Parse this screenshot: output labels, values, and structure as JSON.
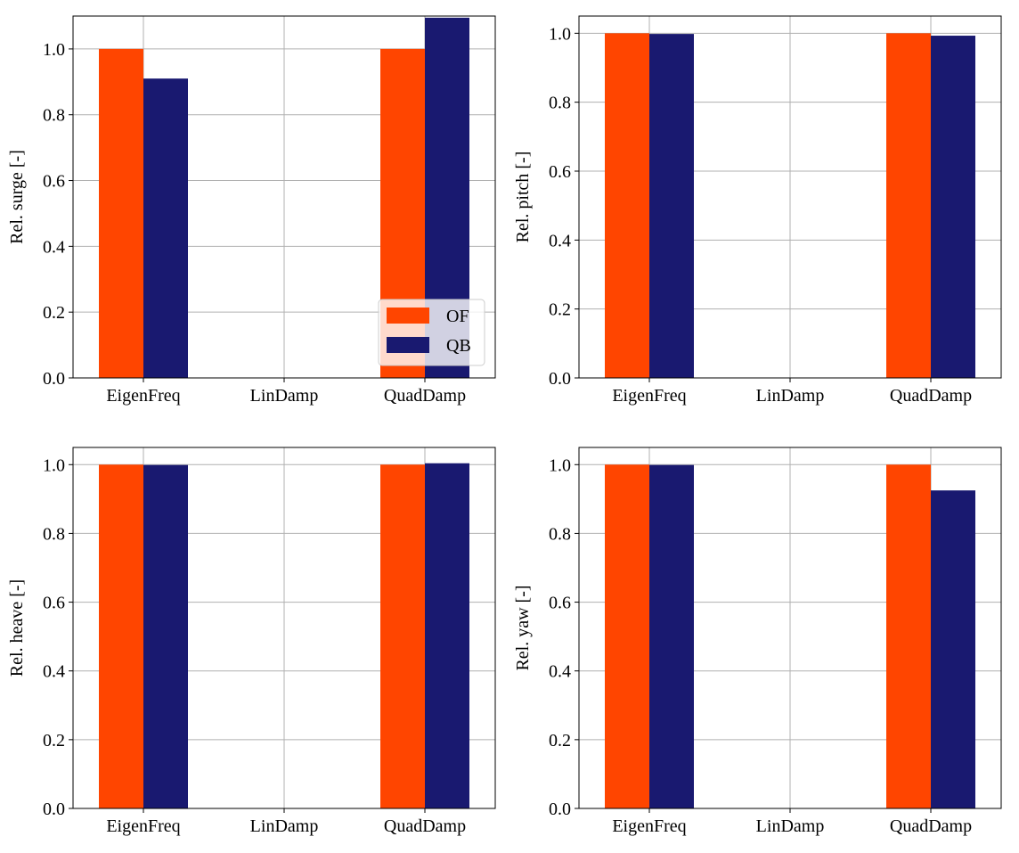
{
  "colors": {
    "OF": "#ff4500",
    "QB": "#191970",
    "grid": "#b0b0b0",
    "axis": "#000000"
  },
  "chart_data": [
    {
      "type": "bar",
      "categories": [
        "EigenFreq",
        "LinDamp",
        "QuadDamp"
      ],
      "series": [
        {
          "name": "OF",
          "values": [
            1.0,
            0.0,
            1.0
          ]
        },
        {
          "name": "QB",
          "values": [
            0.91,
            0.0,
            1.095
          ]
        }
      ],
      "ylabel": "Rel. surge [-]",
      "ylim": [
        0,
        1.1
      ],
      "yticks": [
        "0.0",
        "0.2",
        "0.4",
        "0.6",
        "0.8",
        "1.0"
      ],
      "grid": true,
      "legend": "lower-right"
    },
    {
      "type": "bar",
      "categories": [
        "EigenFreq",
        "LinDamp",
        "QuadDamp"
      ],
      "series": [
        {
          "name": "OF",
          "values": [
            1.0,
            0.0,
            1.0
          ]
        },
        {
          "name": "QB",
          "values": [
            0.998,
            0.0,
            0.993
          ]
        }
      ],
      "ylabel": "Rel. pitch [-]",
      "ylim": [
        0,
        1.05
      ],
      "yticks": [
        "0.0",
        "0.2",
        "0.4",
        "0.6",
        "0.8",
        "1.0"
      ],
      "grid": true,
      "legend": "none"
    },
    {
      "type": "bar",
      "categories": [
        "EigenFreq",
        "LinDamp",
        "QuadDamp"
      ],
      "series": [
        {
          "name": "OF",
          "values": [
            1.0,
            0.0,
            1.0
          ]
        },
        {
          "name": "QB",
          "values": [
            0.999,
            0.0,
            1.004
          ]
        }
      ],
      "ylabel": "Rel. heave [-]",
      "ylim": [
        0,
        1.05
      ],
      "yticks": [
        "0.0",
        "0.2",
        "0.4",
        "0.6",
        "0.8",
        "1.0"
      ],
      "grid": true,
      "legend": "none"
    },
    {
      "type": "bar",
      "categories": [
        "EigenFreq",
        "LinDamp",
        "QuadDamp"
      ],
      "series": [
        {
          "name": "OF",
          "values": [
            1.0,
            0.0,
            1.0
          ]
        },
        {
          "name": "QB",
          "values": [
            0.999,
            0.0,
            0.925
          ]
        }
      ],
      "ylabel": "Rel. yaw [-]",
      "ylim": [
        0,
        1.05
      ],
      "yticks": [
        "0.0",
        "0.2",
        "0.4",
        "0.6",
        "0.8",
        "1.0"
      ],
      "grid": true,
      "legend": "none"
    }
  ]
}
